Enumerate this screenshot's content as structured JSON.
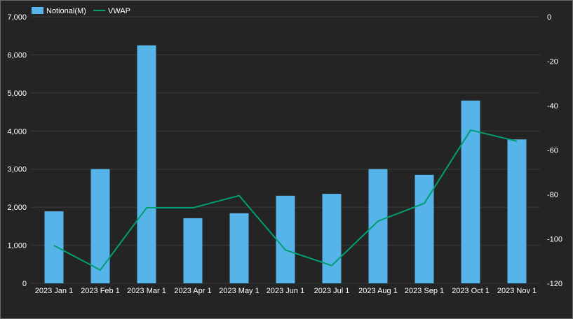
{
  "chart_data": {
    "type": "bar",
    "categories": [
      "2023 Jan 1",
      "2023 Feb 1",
      "2023 Mar 1",
      "2023 Apr 1",
      "2023 May 1",
      "2023 Jun 1",
      "2023 Jul 1",
      "2023 Aug 1",
      "2023 Sep 1",
      "2023 Oct 1",
      "2023 Nov 1"
    ],
    "series": [
      {
        "name": "Notional(M)",
        "type": "bar",
        "axis": "left",
        "color": "#56b4e9",
        "values": [
          1890,
          3000,
          6250,
          1710,
          1840,
          2300,
          2350,
          3000,
          2850,
          4800,
          3780
        ]
      },
      {
        "name": "VWAP",
        "type": "line",
        "axis": "right",
        "color": "#009e73",
        "values": [
          -103,
          -114,
          -86,
          -86,
          -80.5,
          -105,
          -112,
          -92,
          -84,
          -51,
          -56
        ]
      }
    ],
    "yleft": {
      "range": [
        0,
        7000
      ],
      "ticks": [
        0,
        1000,
        2000,
        3000,
        4000,
        5000,
        6000,
        7000
      ],
      "tick_labels": [
        "0",
        "1,000",
        "2,000",
        "3,000",
        "4,000",
        "5,000",
        "6,000",
        "7,000"
      ]
    },
    "yright": {
      "range": [
        -120,
        0
      ],
      "ticks": [
        0,
        -20,
        -40,
        -60,
        -80,
        -100,
        -120
      ],
      "tick_labels": [
        "0",
        "-20",
        "-40",
        "-60",
        "-80",
        "-100",
        "-120"
      ]
    },
    "grid": true,
    "legend_position": "top-left",
    "background": "#242424",
    "grid_color": "#3a3a3a"
  }
}
